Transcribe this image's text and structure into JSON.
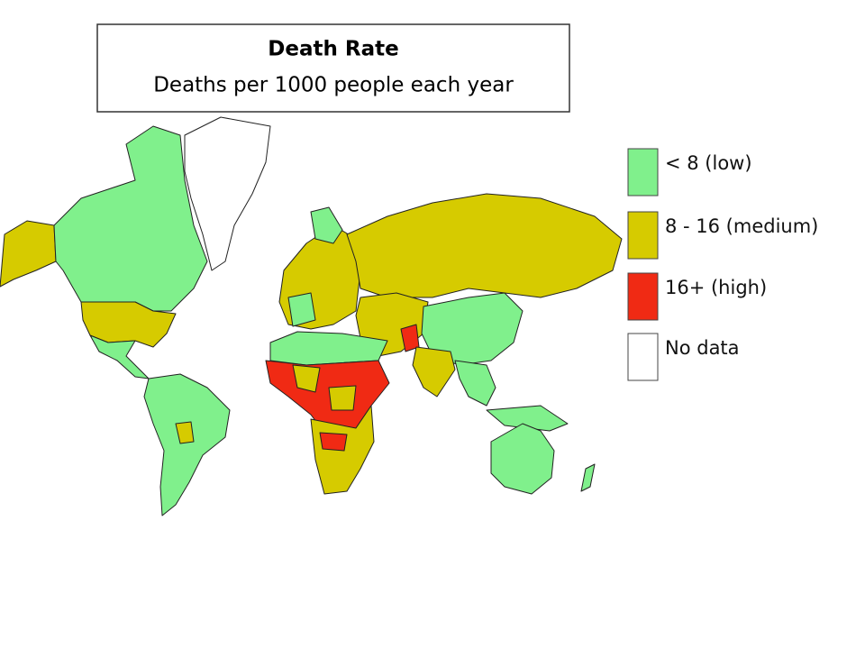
{
  "title": "Death Rate",
  "subtitle": "Deaths per 1000 people each year",
  "legend": [
    {
      "label": "< 8 (low)",
      "color": "#80f08c"
    },
    {
      "label": "8 - 16 (medium)",
      "color": "#d6cb00"
    },
    {
      "label": "16+ (high)",
      "color": "#f02a14"
    },
    {
      "label": "No data",
      "color": "#ffffff"
    }
  ]
}
